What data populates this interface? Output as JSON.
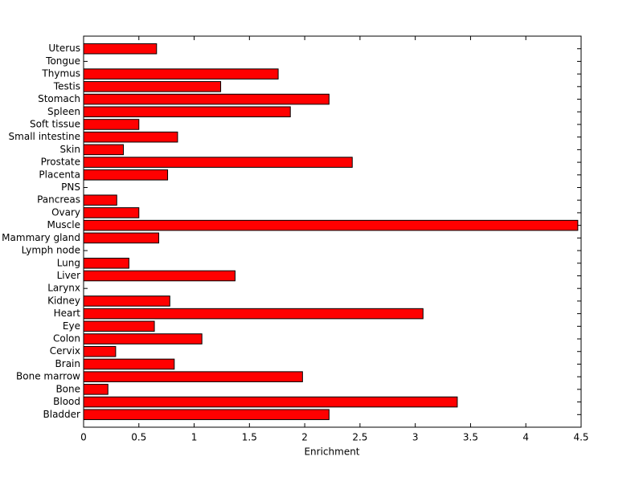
{
  "chart_data": {
    "type": "barh",
    "x_label": "Enrichment",
    "categories": [
      "Bladder",
      "Blood",
      "Bone",
      "Bone marrow",
      "Brain",
      "Cervix",
      "Colon",
      "Eye",
      "Heart",
      "Kidney",
      "Larynx",
      "Liver",
      "Lung",
      "Lymph node",
      "Mammary gland",
      "Muscle",
      "Ovary",
      "Pancreas",
      "PNS",
      "Placenta",
      "Prostate",
      "Skin",
      "Small intestine",
      "Soft tissue",
      "Spleen",
      "Stomach",
      "Testis",
      "Thymus",
      "Tongue",
      "Uterus"
    ],
    "values": [
      2.22,
      3.38,
      0.22,
      1.98,
      0.82,
      0.29,
      1.07,
      0.64,
      3.07,
      0.78,
      0,
      1.37,
      0.41,
      0,
      0.68,
      4.47,
      0.5,
      0.3,
      0,
      0.76,
      2.43,
      0.36,
      0.85,
      0.5,
      1.87,
      2.22,
      1.24,
      1.76,
      0,
      0.66
    ],
    "color": "#ff0000",
    "xlim": [
      0,
      4.5
    ],
    "xticks": [
      0,
      0.5,
      1,
      1.5,
      2,
      2.5,
      3,
      3.5,
      4,
      4.5
    ]
  }
}
